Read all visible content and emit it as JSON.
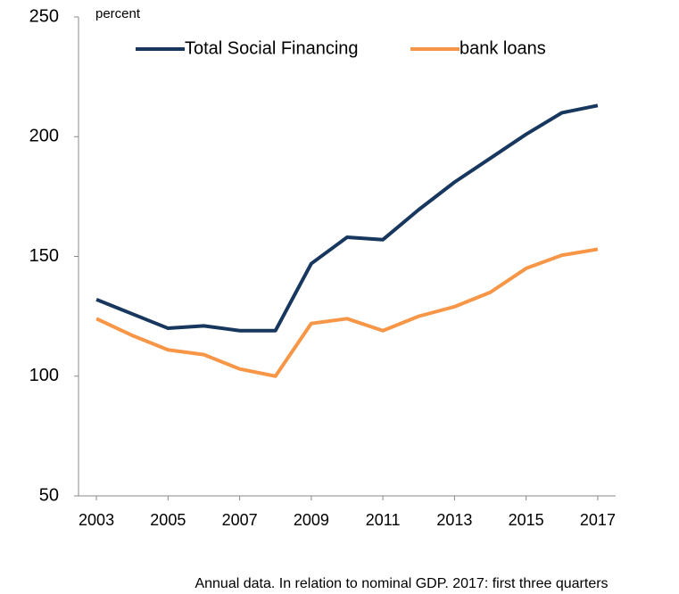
{
  "chart_data": {
    "type": "line",
    "y_label": "percent",
    "note": "Annual data. In relation to nominal GDP. 2017: first three quarters",
    "x": [
      2003,
      2004,
      2005,
      2006,
      2007,
      2008,
      2009,
      2010,
      2011,
      2012,
      2013,
      2014,
      2015,
      2016,
      2017
    ],
    "series": [
      {
        "name": "Total Social Financing",
        "color": "#17375e",
        "values": [
          132,
          126,
          120,
          121,
          119,
          119,
          147,
          158,
          157,
          169.5,
          181,
          191,
          201,
          210,
          213
        ]
      },
      {
        "name": "bank loans",
        "color": "#f79646",
        "values": [
          124,
          117,
          111,
          109,
          103,
          100,
          122,
          124,
          119,
          125,
          129,
          135,
          145,
          150.5,
          153
        ]
      }
    ],
    "xlim": [
      2002.5,
      2017.5
    ],
    "xticks": [
      2003,
      2005,
      2007,
      2009,
      2011,
      2013,
      2015,
      2017
    ],
    "ylim": [
      50,
      250
    ],
    "yticks": [
      50,
      100,
      150,
      200,
      250
    ],
    "legend": "top"
  }
}
